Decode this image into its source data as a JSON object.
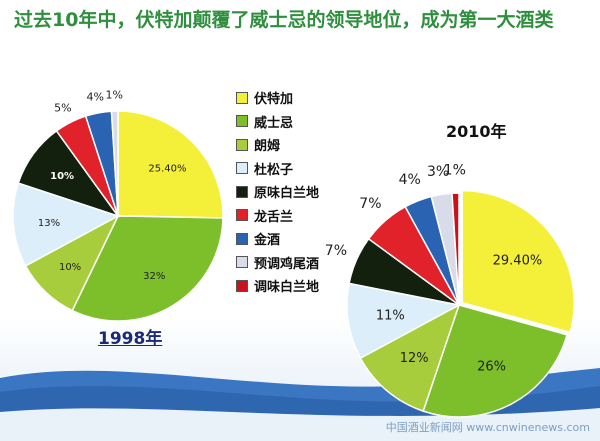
{
  "title": "过去10年中，伏特加颠覆了威士忌的领导地位，成为第一大酒类",
  "watermark": "中国酒业新闻网 www.cnwinenews.com",
  "chart_data": [
    {
      "type": "pie",
      "title": "1998年",
      "categories": [
        "伏特加",
        "威士忌",
        "朗姆",
        "杜松子",
        "原味白兰地",
        "龙舌兰",
        "金酒",
        "预调鸡尾酒",
        "调味白兰地"
      ],
      "values": [
        25.4,
        32,
        10,
        13,
        10,
        5,
        4,
        1,
        0
      ],
      "labels": [
        "25.40%",
        "32%",
        "10%",
        "13%",
        "10%",
        "5%",
        "4%",
        "1%",
        ""
      ],
      "colors": [
        "#f4f03a",
        "#7cbf2a",
        "#a8cd3c",
        "#dceefa",
        "#14200e",
        "#e2222a",
        "#2a63b2",
        "#d8dbe8",
        "#c8121c"
      ]
    },
    {
      "type": "pie",
      "title": "2010年",
      "categories": [
        "伏特加",
        "威士忌",
        "朗姆",
        "杜松子",
        "原味白兰地",
        "龙舌兰",
        "金酒",
        "预调鸡尾酒",
        "调味白兰地"
      ],
      "values": [
        29.4,
        26,
        12,
        11,
        7,
        7,
        4,
        3,
        1
      ],
      "labels": [
        "29.40%",
        "26%",
        "12%",
        "11%",
        "7%",
        "7%",
        "4%",
        "3%",
        "1%"
      ],
      "colors": [
        "#f4f03a",
        "#7cbf2a",
        "#a8cd3c",
        "#dceefa",
        "#14200e",
        "#e2222a",
        "#2a63b2",
        "#d8dbe8",
        "#c8121c"
      ]
    }
  ],
  "legend": {
    "items": [
      {
        "label": "伏特加",
        "color": "#f4f03a"
      },
      {
        "label": "威士忌",
        "color": "#7cbf2a"
      },
      {
        "label": "朗姆",
        "color": "#a8cd3c"
      },
      {
        "label": "杜松子",
        "color": "#dceefa"
      },
      {
        "label": "原味白兰地",
        "color": "#14200e"
      },
      {
        "label": "龙舌兰",
        "color": "#e2222a"
      },
      {
        "label": "金酒",
        "color": "#2a63b2"
      },
      {
        "label": "预调鸡尾酒",
        "color": "#d8dbe8"
      },
      {
        "label": "调味白兰地",
        "color": "#c8121c"
      }
    ]
  }
}
